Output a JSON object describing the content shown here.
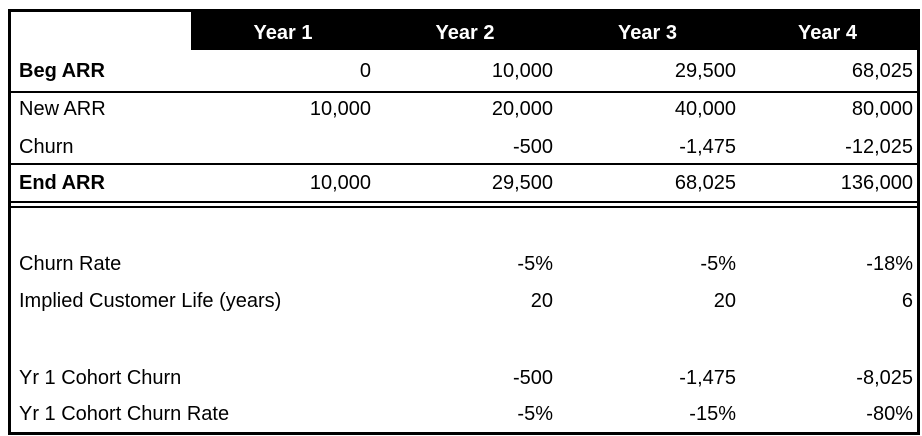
{
  "table": {
    "header": [
      "Year 1",
      "Year 2",
      "Year 3",
      "Year 4"
    ],
    "rows": [
      {
        "label": "Beg ARR",
        "bold": true,
        "cells": [
          "0",
          "10,000",
          "29,500",
          "68,025"
        ]
      },
      {
        "label": "New ARR",
        "cells": [
          "10,000",
          "20,000",
          "40,000",
          "80,000"
        ]
      },
      {
        "label": "Churn",
        "cells": [
          null,
          "-500",
          "-1,475",
          "-12,025"
        ]
      },
      {
        "label": "End ARR",
        "bold": true,
        "cells": [
          "10,000",
          "29,500",
          "68,025",
          "136,000"
        ]
      },
      {
        "label": "Churn Rate",
        "cells": [
          null,
          "-5%",
          "-5%",
          "-18%"
        ]
      },
      {
        "label": "Implied Customer Life (years)",
        "cells": [
          null,
          "20",
          "20",
          "6"
        ]
      },
      {
        "label": "Yr 1 Cohort Churn",
        "cells": [
          null,
          "-500",
          "-1,475",
          "-8,025"
        ]
      },
      {
        "label": "Yr 1 Cohort Churn Rate",
        "cells": [
          null,
          "-5%",
          "-15%",
          "-80%"
        ]
      }
    ]
  }
}
